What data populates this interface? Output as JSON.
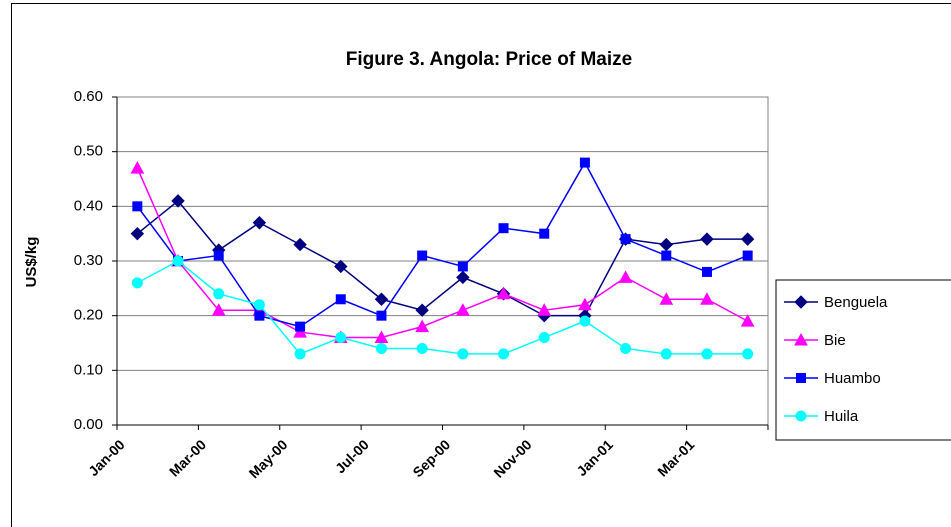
{
  "chart_data": {
    "type": "line",
    "title": "Figure 3. Angola: Price of Maize",
    "y_label": "US$/kg",
    "categories": [
      "Jan-00",
      null,
      "Mar-00",
      null,
      "May-00",
      null,
      "Jul-00",
      null,
      "Sep-00",
      null,
      "Nov-00",
      null,
      "Jan-01",
      null,
      "Mar-01",
      null
    ],
    "ylim": [
      0,
      0.6
    ],
    "yticks": [
      {
        "value": 0,
        "label": "0.00"
      },
      {
        "value": 0.1,
        "label": "0.10"
      },
      {
        "value": 0.2,
        "label": "0.20"
      },
      {
        "value": 0.3,
        "label": "0.30"
      },
      {
        "value": 0.4,
        "label": "0.40"
      },
      {
        "value": 0.5,
        "label": "0.50"
      },
      {
        "value": 0.6,
        "label": "0.60"
      }
    ],
    "grid": true,
    "legend": "right",
    "series": [
      {
        "name": "Benguela",
        "color": "#000080",
        "marker": "diamond",
        "values": [
          0.35,
          0.41,
          0.32,
          0.37,
          0.33,
          0.29,
          0.23,
          0.21,
          0.27,
          0.24,
          0.2,
          0.2,
          0.34,
          0.33,
          0.34,
          0.34
        ]
      },
      {
        "name": "Bie",
        "color": "#ff00ff",
        "marker": "triangle",
        "values": [
          0.47,
          0.3,
          0.21,
          0.21,
          0.17,
          0.16,
          0.16,
          0.18,
          0.21,
          0.24,
          0.21,
          0.22,
          0.27,
          0.23,
          0.23,
          0.19
        ]
      },
      {
        "name": "Huambo",
        "color": "#0000ff",
        "marker": "square",
        "values": [
          0.4,
          0.3,
          0.31,
          0.2,
          0.18,
          0.23,
          0.2,
          0.31,
          0.29,
          0.36,
          0.35,
          0.48,
          0.34,
          0.31,
          0.28,
          0.31
        ]
      },
      {
        "name": "Huila",
        "color": "#00ffff",
        "marker": "circle",
        "values": [
          0.26,
          0.3,
          0.24,
          0.22,
          0.13,
          0.16,
          0.14,
          0.14,
          0.13,
          0.13,
          0.16,
          0.19,
          0.14,
          0.13,
          0.13,
          0.13
        ]
      }
    ]
  }
}
